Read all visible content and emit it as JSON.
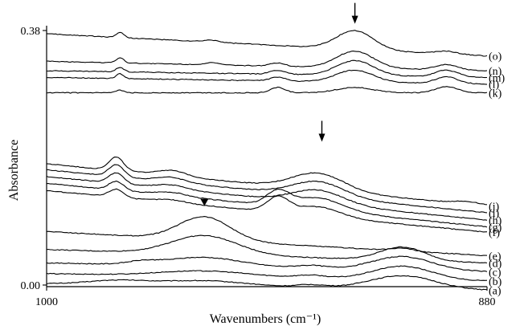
{
  "chart_data": {
    "type": "line",
    "title": "",
    "xlabel": "Wavenumbers (cm⁻¹)",
    "ylabel": "Absorbance",
    "xlim": [
      1000,
      880
    ],
    "ylim": [
      0.0,
      0.38
    ],
    "x_reversed": true,
    "xticks": [
      {
        "value": 1000,
        "label": "1000"
      },
      {
        "value": 880,
        "label": "880"
      }
    ],
    "yticks": [
      {
        "value": 0.0,
        "label": "0.00"
      },
      {
        "value": 0.38,
        "label": "0.38"
      }
    ],
    "grid": false,
    "annotations": [
      {
        "type": "arrow",
        "x": 916,
        "y": 0.39
      },
      {
        "type": "arrow",
        "x": 925,
        "y": 0.214
      },
      {
        "type": "triangle",
        "x": 957,
        "y": 0.118
      }
    ],
    "series": [
      {
        "name": "(a)",
        "x0": 0.002,
        "x1": -0.008,
        "peaks": [
          [
            981,
            0.006,
            8
          ],
          [
            928,
            0.004,
            4
          ],
          [
            903,
            0.02,
            9
          ],
          [
            957,
            0.008,
            12
          ]
        ]
      },
      {
        "name": "(b)",
        "x0": 0.017,
        "x1": 0.006,
        "peaks": [
          [
            903,
            0.02,
            8
          ],
          [
            957,
            0.008,
            12
          ],
          [
            928,
            0.004,
            4
          ]
        ]
      },
      {
        "name": "(c)",
        "x0": 0.033,
        "x1": 0.02,
        "peaks": [
          [
            903,
            0.02,
            8
          ],
          [
            957,
            0.013,
            10
          ],
          [
            974,
            0.004,
            4
          ],
          [
            928,
            0.004,
            4
          ]
        ]
      },
      {
        "name": "(d)",
        "x0": 0.053,
        "x1": 0.033,
        "peaks": [
          [
            903,
            0.02,
            6
          ],
          [
            957,
            0.028,
            9
          ]
        ]
      },
      {
        "name": "(e)",
        "x0": 0.08,
        "x1": 0.044,
        "peaks": [
          [
            957,
            0.035,
            7
          ],
          [
            903,
            0.004,
            3
          ]
        ]
      },
      {
        "name": "(f)",
        "x0": 0.141,
        "x1": 0.079,
        "peaks": [
          [
            981,
            0.012,
            2
          ],
          [
            966,
            0.004,
            4
          ],
          [
            937,
            0.022,
            3
          ],
          [
            926,
            0.014,
            6
          ]
        ]
      },
      {
        "name": "(g)",
        "x0": 0.152,
        "x1": 0.087,
        "peaks": [
          [
            981,
            0.013,
            2
          ],
          [
            966,
            0.005,
            4
          ],
          [
            937,
            0.02,
            3
          ],
          [
            926,
            0.018,
            7
          ]
        ]
      },
      {
        "name": "(h)",
        "x0": 0.162,
        "x1": 0.097,
        "peaks": [
          [
            981,
            0.016,
            2
          ],
          [
            966,
            0.006,
            4
          ],
          [
            926,
            0.02,
            7
          ]
        ]
      },
      {
        "name": "(i)",
        "x0": 0.172,
        "x1": 0.108,
        "peaks": [
          [
            981,
            0.018,
            2
          ],
          [
            966,
            0.007,
            4
          ],
          [
            926,
            0.022,
            7
          ]
        ]
      },
      {
        "name": "(j)",
        "x0": 0.181,
        "x1": 0.118,
        "peaks": [
          [
            981,
            0.02,
            2
          ],
          [
            966,
            0.008,
            4
          ],
          [
            926,
            0.025,
            7
          ],
          [
            885,
            0.004,
            4
          ]
        ]
      },
      {
        "name": "(k)",
        "x0": 0.287,
        "x1": 0.287,
        "peaks": [
          [
            980,
            0.004,
            1
          ],
          [
            937,
            0.008,
            2
          ],
          [
            916,
            0.008,
            5
          ],
          [
            891,
            0.009,
            3
          ]
        ]
      },
      {
        "name": "(l)",
        "x0": 0.31,
        "x1": 0.3,
        "peaks": [
          [
            980,
            0.007,
            1
          ],
          [
            937,
            0.006,
            2
          ],
          [
            916,
            0.018,
            5
          ],
          [
            891,
            0.01,
            3
          ]
        ]
      },
      {
        "name": "(m)",
        "x0": 0.32,
        "x1": 0.31,
        "peaks": [
          [
            980,
            0.007,
            1
          ],
          [
            937,
            0.006,
            2
          ],
          [
            916,
            0.022,
            5
          ],
          [
            891,
            0.01,
            3
          ]
        ]
      },
      {
        "name": "(n)",
        "x0": 0.334,
        "x1": 0.32,
        "peaks": [
          [
            980,
            0.008,
            1
          ],
          [
            955,
            0.003,
            2
          ],
          [
            937,
            0.005,
            2
          ],
          [
            916,
            0.025,
            5
          ],
          [
            891,
            0.008,
            3
          ]
        ]
      },
      {
        "name": "(o)",
        "x0": 0.375,
        "x1": 0.342,
        "peaks": [
          [
            980,
            0.008,
            1
          ],
          [
            955,
            0.003,
            2
          ],
          [
            916,
            0.028,
            5
          ],
          [
            891,
            0.004,
            3
          ]
        ]
      }
    ]
  }
}
